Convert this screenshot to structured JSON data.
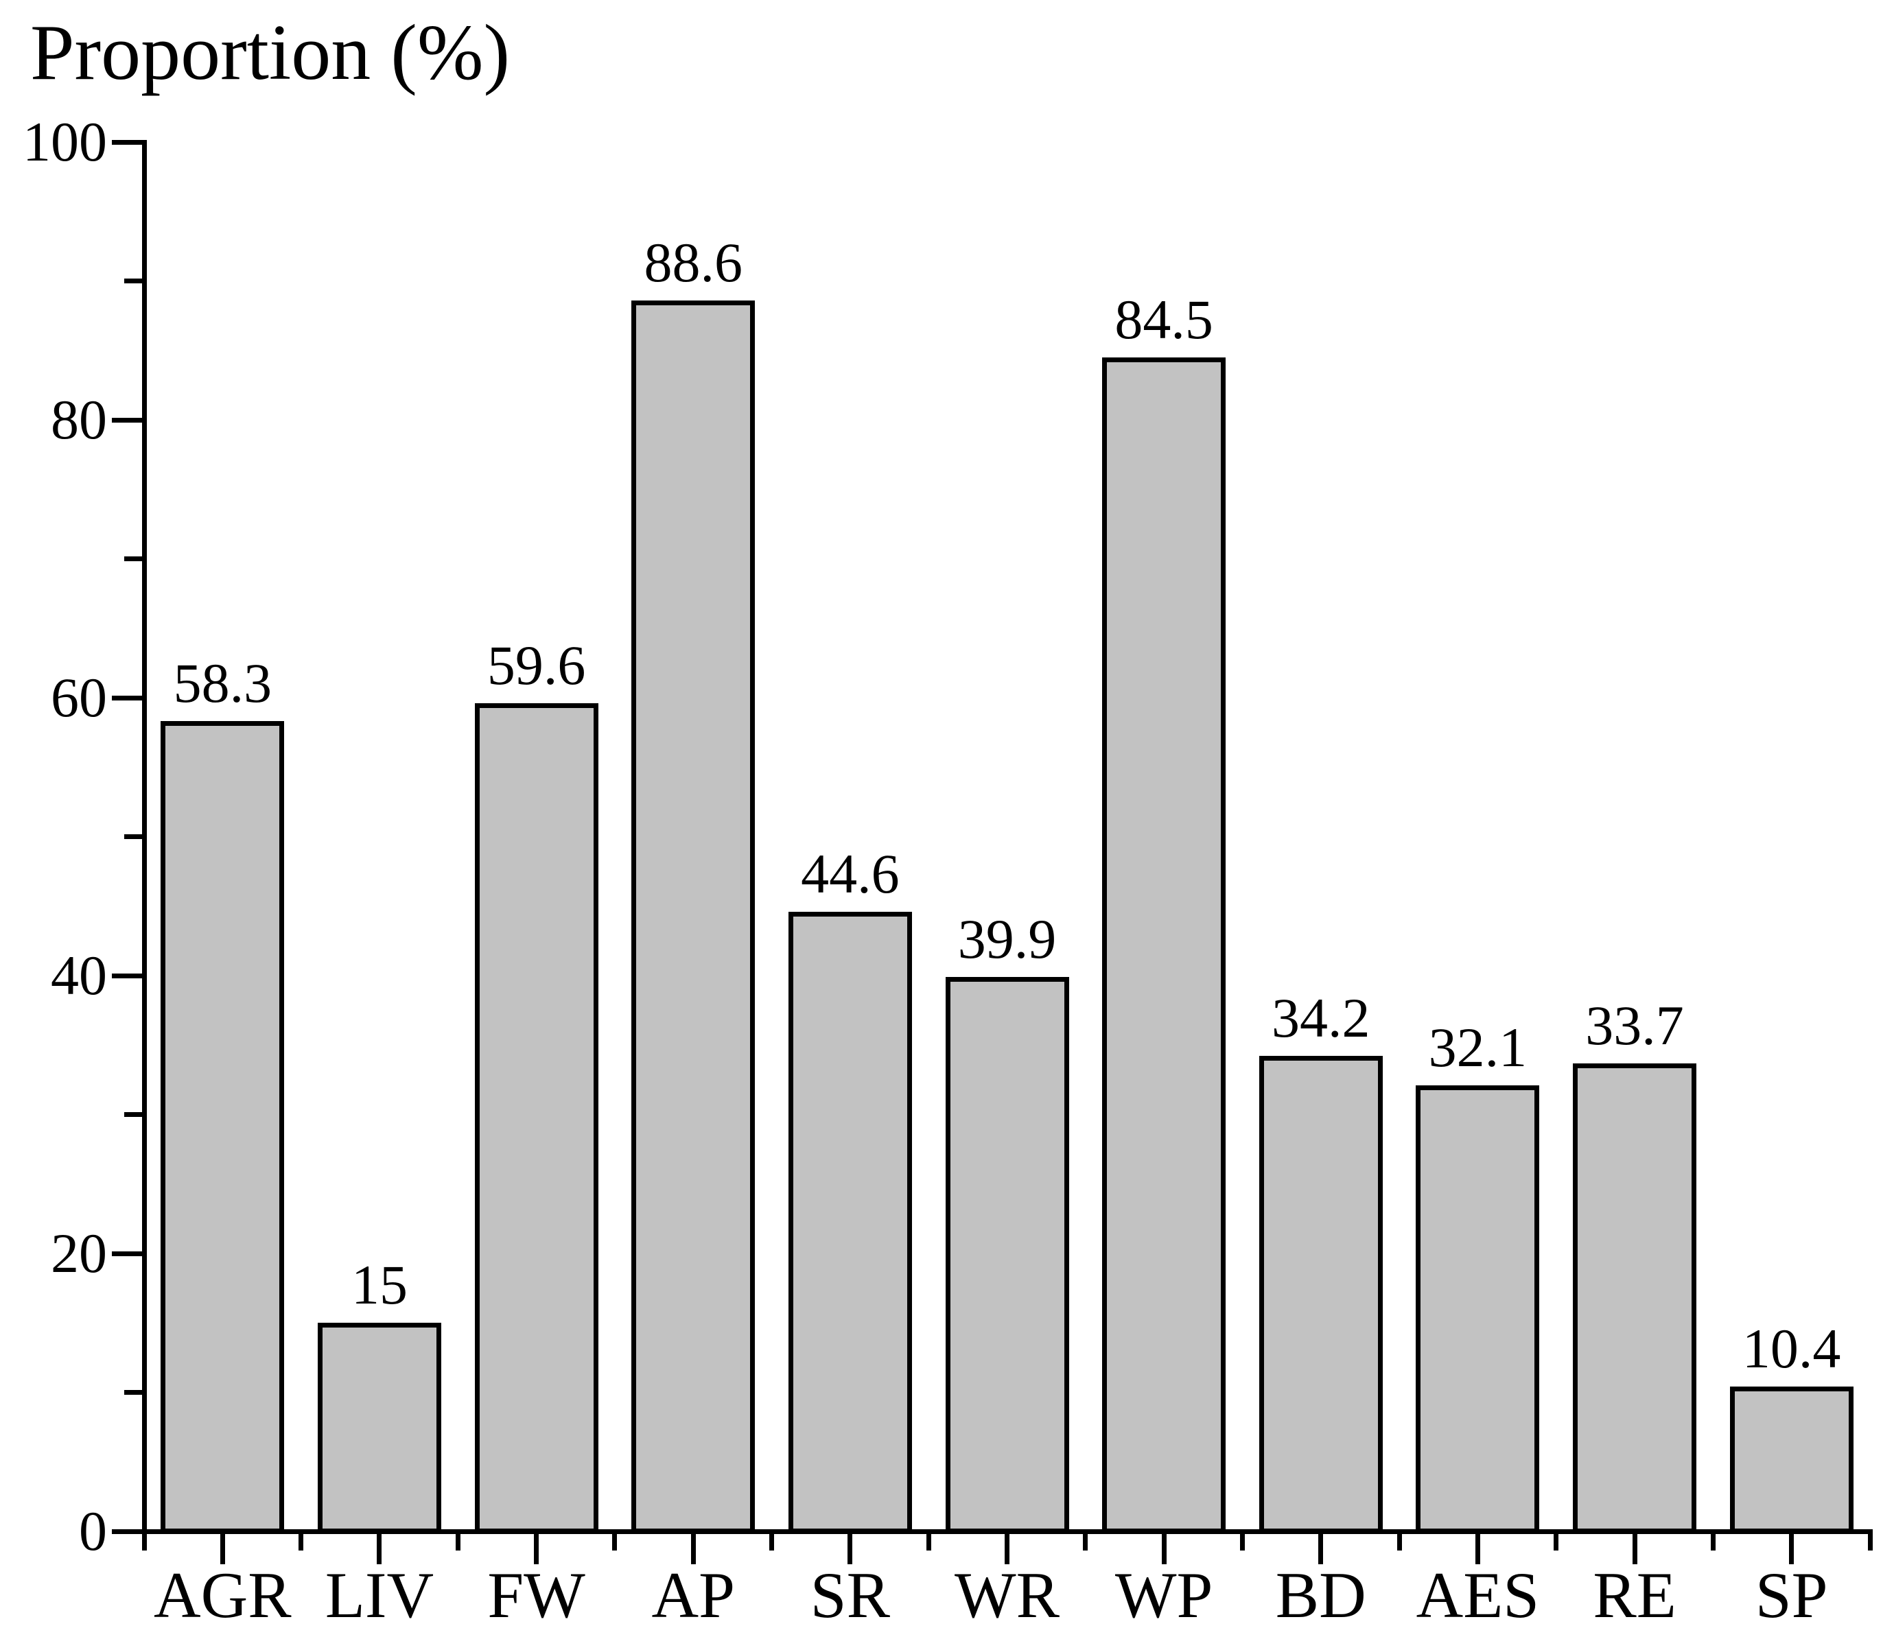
{
  "chart_data": {
    "type": "bar",
    "title": "Proportion (%)",
    "ylabel": "Proportion (%)",
    "xlabel": "",
    "categories": [
      "AGR",
      "LIV",
      "FW",
      "AP",
      "SR",
      "WR",
      "WP",
      "BD",
      "AES",
      "RE",
      "SP"
    ],
    "values": [
      58.3,
      15,
      59.6,
      88.6,
      44.6,
      39.9,
      84.5,
      34.2,
      32.1,
      33.7,
      10.4
    ],
    "value_labels": [
      "58.3",
      "15",
      "59.6",
      "88.6",
      "44.6",
      "39.9",
      "84.5",
      "34.2",
      "32.1",
      "33.7",
      "10.4"
    ],
    "ylim": [
      0,
      100
    ],
    "y_major_ticks": [
      0,
      20,
      40,
      60,
      80,
      100
    ],
    "y_minor_step": 10,
    "grid": false,
    "legend_position": "none",
    "bar_fill_color": "#c2c2c2",
    "bar_border_color": "#000000",
    "axis_color": "#000000",
    "text_color": "#000000",
    "background_color": "#ffffff"
  }
}
